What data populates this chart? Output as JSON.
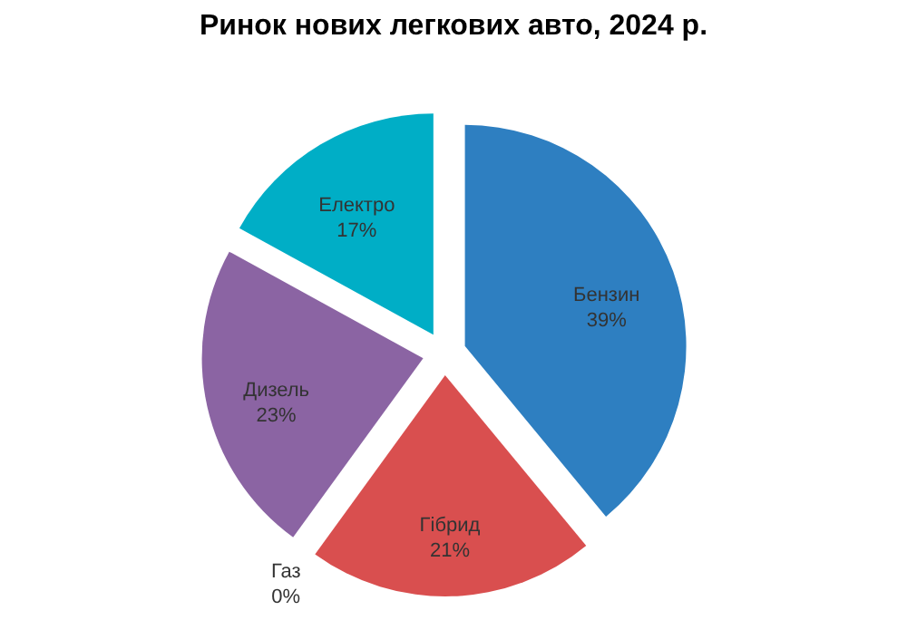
{
  "chart_data": {
    "type": "pie",
    "title": "Ринок нових легкових авто, 2024 р.",
    "categories": [
      "Бензин",
      "Гібрид",
      "Газ",
      "Дизель",
      "Електро"
    ],
    "values": [
      39,
      21,
      0,
      23,
      17
    ],
    "value_labels": [
      "39%",
      "21%",
      "0%",
      "23%",
      "17%"
    ],
    "colors": [
      "#2e7fc1",
      "#d94f4f",
      "#8fbf4f",
      "#8b64a3",
      "#00aec6"
    ],
    "legend": false
  }
}
